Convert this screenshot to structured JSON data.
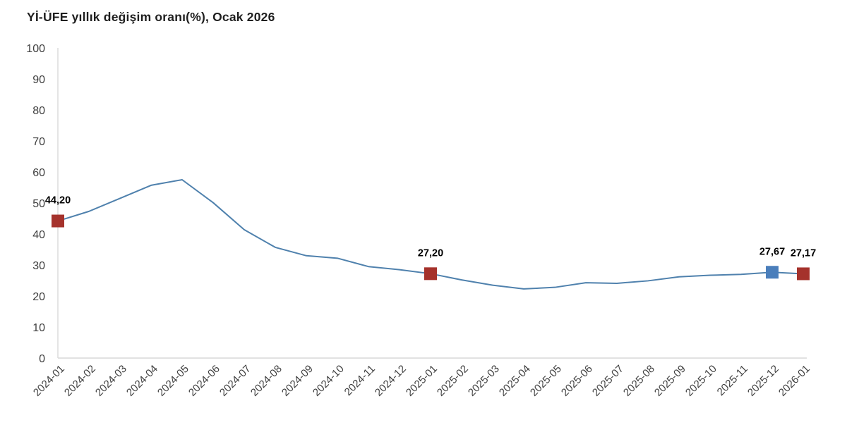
{
  "page": {
    "background": "#ffffff"
  },
  "chart_data": {
    "type": "line",
    "title": "Yİ-ÜFE yıllık değişim oranı(%), Ocak 2026",
    "x": [
      "2024-01",
      "2024-02",
      "2024-03",
      "2024-04",
      "2024-05",
      "2024-06",
      "2024-07",
      "2024-08",
      "2024-09",
      "2024-10",
      "2024-11",
      "2024-12",
      "2025-01",
      "2025-02",
      "2025-03",
      "2025-04",
      "2025-05",
      "2025-06",
      "2025-07",
      "2025-08",
      "2025-09",
      "2025-10",
      "2025-11",
      "2025-12",
      "2026-01"
    ],
    "values": [
      44.2,
      47.3,
      51.5,
      55.7,
      57.5,
      50.1,
      41.4,
      35.7,
      33.0,
      32.2,
      29.5,
      28.5,
      27.2,
      25.2,
      23.5,
      22.3,
      22.8,
      24.3,
      24.1,
      24.9,
      26.2,
      26.7,
      27.0,
      27.67,
      27.17
    ],
    "ylim": [
      0,
      100
    ],
    "yticks": [
      0,
      10,
      20,
      30,
      40,
      50,
      60,
      70,
      80,
      90,
      100
    ],
    "grid": false,
    "legend_position": "none",
    "xlabel": "",
    "ylabel": "",
    "line_color": "#4F81AD",
    "axis_color": "#D8D8D8",
    "tick_label_color": "#3F3F3F",
    "data_label_color": "#000000",
    "annotated_points": [
      {
        "x": "2024-01",
        "index": 0,
        "value": 44.2,
        "label": "44,20",
        "marker_color": "#A5322C"
      },
      {
        "x": "2025-01",
        "index": 12,
        "value": 27.2,
        "label": "27,20",
        "marker_color": "#A5322C"
      },
      {
        "x": "2025-12",
        "index": 23,
        "value": 27.67,
        "label": "27,67",
        "marker_color": "#4A7EBB"
      },
      {
        "x": "2026-01",
        "index": 24,
        "value": 27.17,
        "label": "27,17",
        "marker_color": "#A5322C"
      }
    ]
  }
}
